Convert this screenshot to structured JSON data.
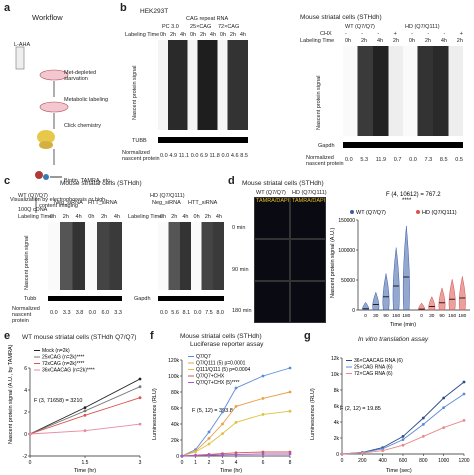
{
  "panel_labels": {
    "a": "a",
    "b": "b",
    "c": "c",
    "d": "d",
    "e": "e",
    "f": "f",
    "g": "g"
  },
  "workflow": {
    "title": "Workflow",
    "steps": [
      "L-AHA",
      "Met-depleted starvation",
      "Metabolic labeling",
      "Click chemistry",
      "Biotin, TAMRA, etc.",
      "Visualization by electrophoresis or high-content imaging"
    ]
  },
  "b_hek": {
    "title": "HEK293T",
    "groups": [
      "PC 3.0",
      "25×CAG",
      "72×CAG"
    ],
    "group_header": "CAG repeat RNA",
    "labeling_time": "Labeling Time",
    "times": [
      "0h",
      "2h",
      "4h",
      "0h",
      "2h",
      "4h",
      "0h",
      "2h",
      "4h"
    ],
    "ylabel": "Nascent protein signal",
    "loading": "TUBB",
    "norm_label": "Normalized nascent protein",
    "norm_values": [
      "0.0",
      "4.9",
      "11.1",
      "0.0",
      "6.9",
      "11.8",
      "0.0",
      "4.6",
      "8.5"
    ]
  },
  "b_sthdh": {
    "title": "Mouse striatal cells (STHdh)",
    "wt": "WT (Q7/Q7)",
    "hd": "HD (Q7/Q111)",
    "chx": "CHX",
    "labeling_time": "Labeling Time",
    "times": [
      "0h",
      "2h",
      "4h",
      "2h",
      "0h",
      "2h",
      "4h",
      "2h"
    ],
    "chx_marks": [
      "-",
      "-",
      "-",
      "+",
      "-",
      "-",
      "-",
      "+"
    ],
    "ylabel": "Nascent protein signal",
    "loading": "Gapdh",
    "norm_label": "Normalized nascent protein",
    "norm_values": [
      "0.0",
      "5.3",
      "11.9",
      "0.7",
      "0.0",
      "7.3",
      "8.5",
      "0.5"
    ]
  },
  "c": {
    "title": "Mouse striatal cells (STHdh)",
    "wt": "WT (Q7/Q7)",
    "hd": "HD (Q7/Q111)",
    "cdna": "100Q cDNA",
    "neg_sirna": "Neg_siRNA",
    "htt_sirna": "HTT_siRNA",
    "labeling_time": "Labeling Time",
    "times": [
      "0h",
      "2h",
      "4h",
      "0h",
      "2h",
      "4h"
    ],
    "ylabel": "Nascent protein signal",
    "loading_wt": "Tubb",
    "loading_hd": "Gapdh",
    "norm_label": "Normalized nascent protein",
    "norm_wt": [
      "0.0",
      "3.3",
      "3.8",
      "0.0",
      "6.0",
      "3.3"
    ],
    "norm_hd": [
      "0.0",
      "5.6",
      "8.1",
      "0.0",
      "7.5",
      "8.0"
    ]
  },
  "d": {
    "title": "Mouse striatal cells (STHdh)",
    "wt": "WT (Q7/Q7)",
    "hd": "HD (Q7/Q111)",
    "stain": "TAMRA/DAPI",
    "rows": [
      "0 min",
      "90 min",
      "180 min"
    ],
    "stat": "F (4, 10612) = 767.2",
    "sig": "****",
    "legend": [
      "WT (Q7/Q7)",
      "HD (Q7/Q111)"
    ],
    "colors": {
      "wt": "#3a5fa8",
      "hd": "#d9534f"
    }
  },
  "e": {
    "title": "WT mouse striatal cells (STHdh Q7/Q7)",
    "ylabel": "Nascent protein signal (A.U., by TAMRA)",
    "xlabel": "Time (hr)",
    "stat": "F (3, 71658) = 3210",
    "legend": [
      "Mock (n=2k)",
      "25xCAG (n=2k)****",
      "72xCAG (n=2k)****",
      "36xCAACAG (n=2k)****"
    ]
  },
  "f": {
    "title": "Mouse striatal cells (STHdh)",
    "subtitle": "Luciferase reporter assay",
    "ylabel": "Luminescence (RLU)",
    "xlabel": "Time (hr)",
    "stat": "F (5, 12) = 393.8",
    "legend": [
      "Q7/Q7",
      "Q7/Q111 (5) p=0.0001",
      "Q111/Q111 (5) p=0.0004",
      "Q7/Q7+CHX",
      "Q7/Q7+CHX (5)****"
    ]
  },
  "g": {
    "title": "In vitro translation assay",
    "ylabel": "Luminescence (RLU)",
    "xlabel": "Time (sec)",
    "stat": "F (2, 12) = 19.85",
    "legend": [
      "36×CAACAG RNA (6)",
      "25×CAG RNA (6)",
      "72×CAG RNA (6)"
    ]
  },
  "chart_data": [
    {
      "type": "violin",
      "panel": "d",
      "ylabel": "Nascent protein signal (A.U.)",
      "xlabel": "Time (min)",
      "categories": [
        0,
        30,
        90,
        150,
        180
      ],
      "ylim": [
        0,
        150000
      ],
      "yticks": [
        0,
        50000,
        100000,
        150000
      ],
      "series": [
        {
          "name": "WT (Q7/Q7)",
          "medians": [
            2000,
            9000,
            22000,
            40000,
            55000
          ]
        },
        {
          "name": "HD (Q7/Q111)",
          "medians": [
            1500,
            6000,
            12000,
            18000,
            20000
          ]
        }
      ]
    },
    {
      "type": "line",
      "panel": "e",
      "x": [
        0,
        1.5,
        3
      ],
      "ylim": [
        -2,
        6
      ],
      "yticks": [
        -2,
        0,
        2,
        4,
        6
      ],
      "series": [
        {
          "name": "Mock (n=2k)",
          "values": [
            0,
            2.4,
            5.0
          ]
        },
        {
          "name": "25xCAG (n=2k)****",
          "values": [
            0,
            2.1,
            4.3
          ]
        },
        {
          "name": "72xCAG (n=2k)****",
          "values": [
            0,
            1.7,
            3.3
          ]
        },
        {
          "name": "36xCAACAG (n=2k)****",
          "values": [
            0,
            0.3,
            0.9
          ]
        }
      ]
    },
    {
      "type": "line",
      "panel": "f",
      "x": [
        0,
        1,
        2,
        3,
        4,
        6,
        8
      ],
      "ylim": [
        0,
        120000
      ],
      "yticks": [
        0,
        20000,
        40000,
        60000,
        80000,
        100000,
        120000
      ],
      "series": [
        {
          "name": "Q7/Q7",
          "values": [
            0,
            8000,
            30000,
            55000,
            85000,
            100000,
            110000
          ]
        },
        {
          "name": "Q7/Q111 (5) p=0.0001",
          "values": [
            0,
            6000,
            22000,
            40000,
            62000,
            72000,
            80000
          ]
        },
        {
          "name": "Q111/Q111 (5) p=0.0004",
          "values": [
            0,
            5000,
            15000,
            28000,
            42000,
            52000,
            56000
          ]
        },
        {
          "name": "Q7/Q7+CHX",
          "values": [
            0,
            1000,
            2000,
            3000,
            4000,
            5000,
            5000
          ]
        },
        {
          "name": "Q7/Q7+CHX (5)****",
          "values": [
            0,
            500,
            1000,
            1500,
            2000,
            2500,
            2500
          ]
        }
      ]
    },
    {
      "type": "line",
      "panel": "g",
      "x": [
        0,
        200,
        400,
        600,
        800,
        1000,
        1200
      ],
      "ylim": [
        0,
        12000
      ],
      "yticks": [
        0,
        2000,
        4000,
        6000,
        8000,
        10000,
        12000
      ],
      "series": [
        {
          "name": "36×CAACAG RNA (6)",
          "values": [
            0,
            200,
            800,
            2200,
            4500,
            7000,
            9000
          ]
        },
        {
          "name": "25×CAG RNA (6)",
          "values": [
            0,
            180,
            650,
            1800,
            3700,
            5800,
            7500
          ]
        },
        {
          "name": "72×CAG RNA (6)",
          "values": [
            0,
            120,
            420,
            1100,
            2200,
            3300,
            4200
          ]
        }
      ]
    }
  ]
}
